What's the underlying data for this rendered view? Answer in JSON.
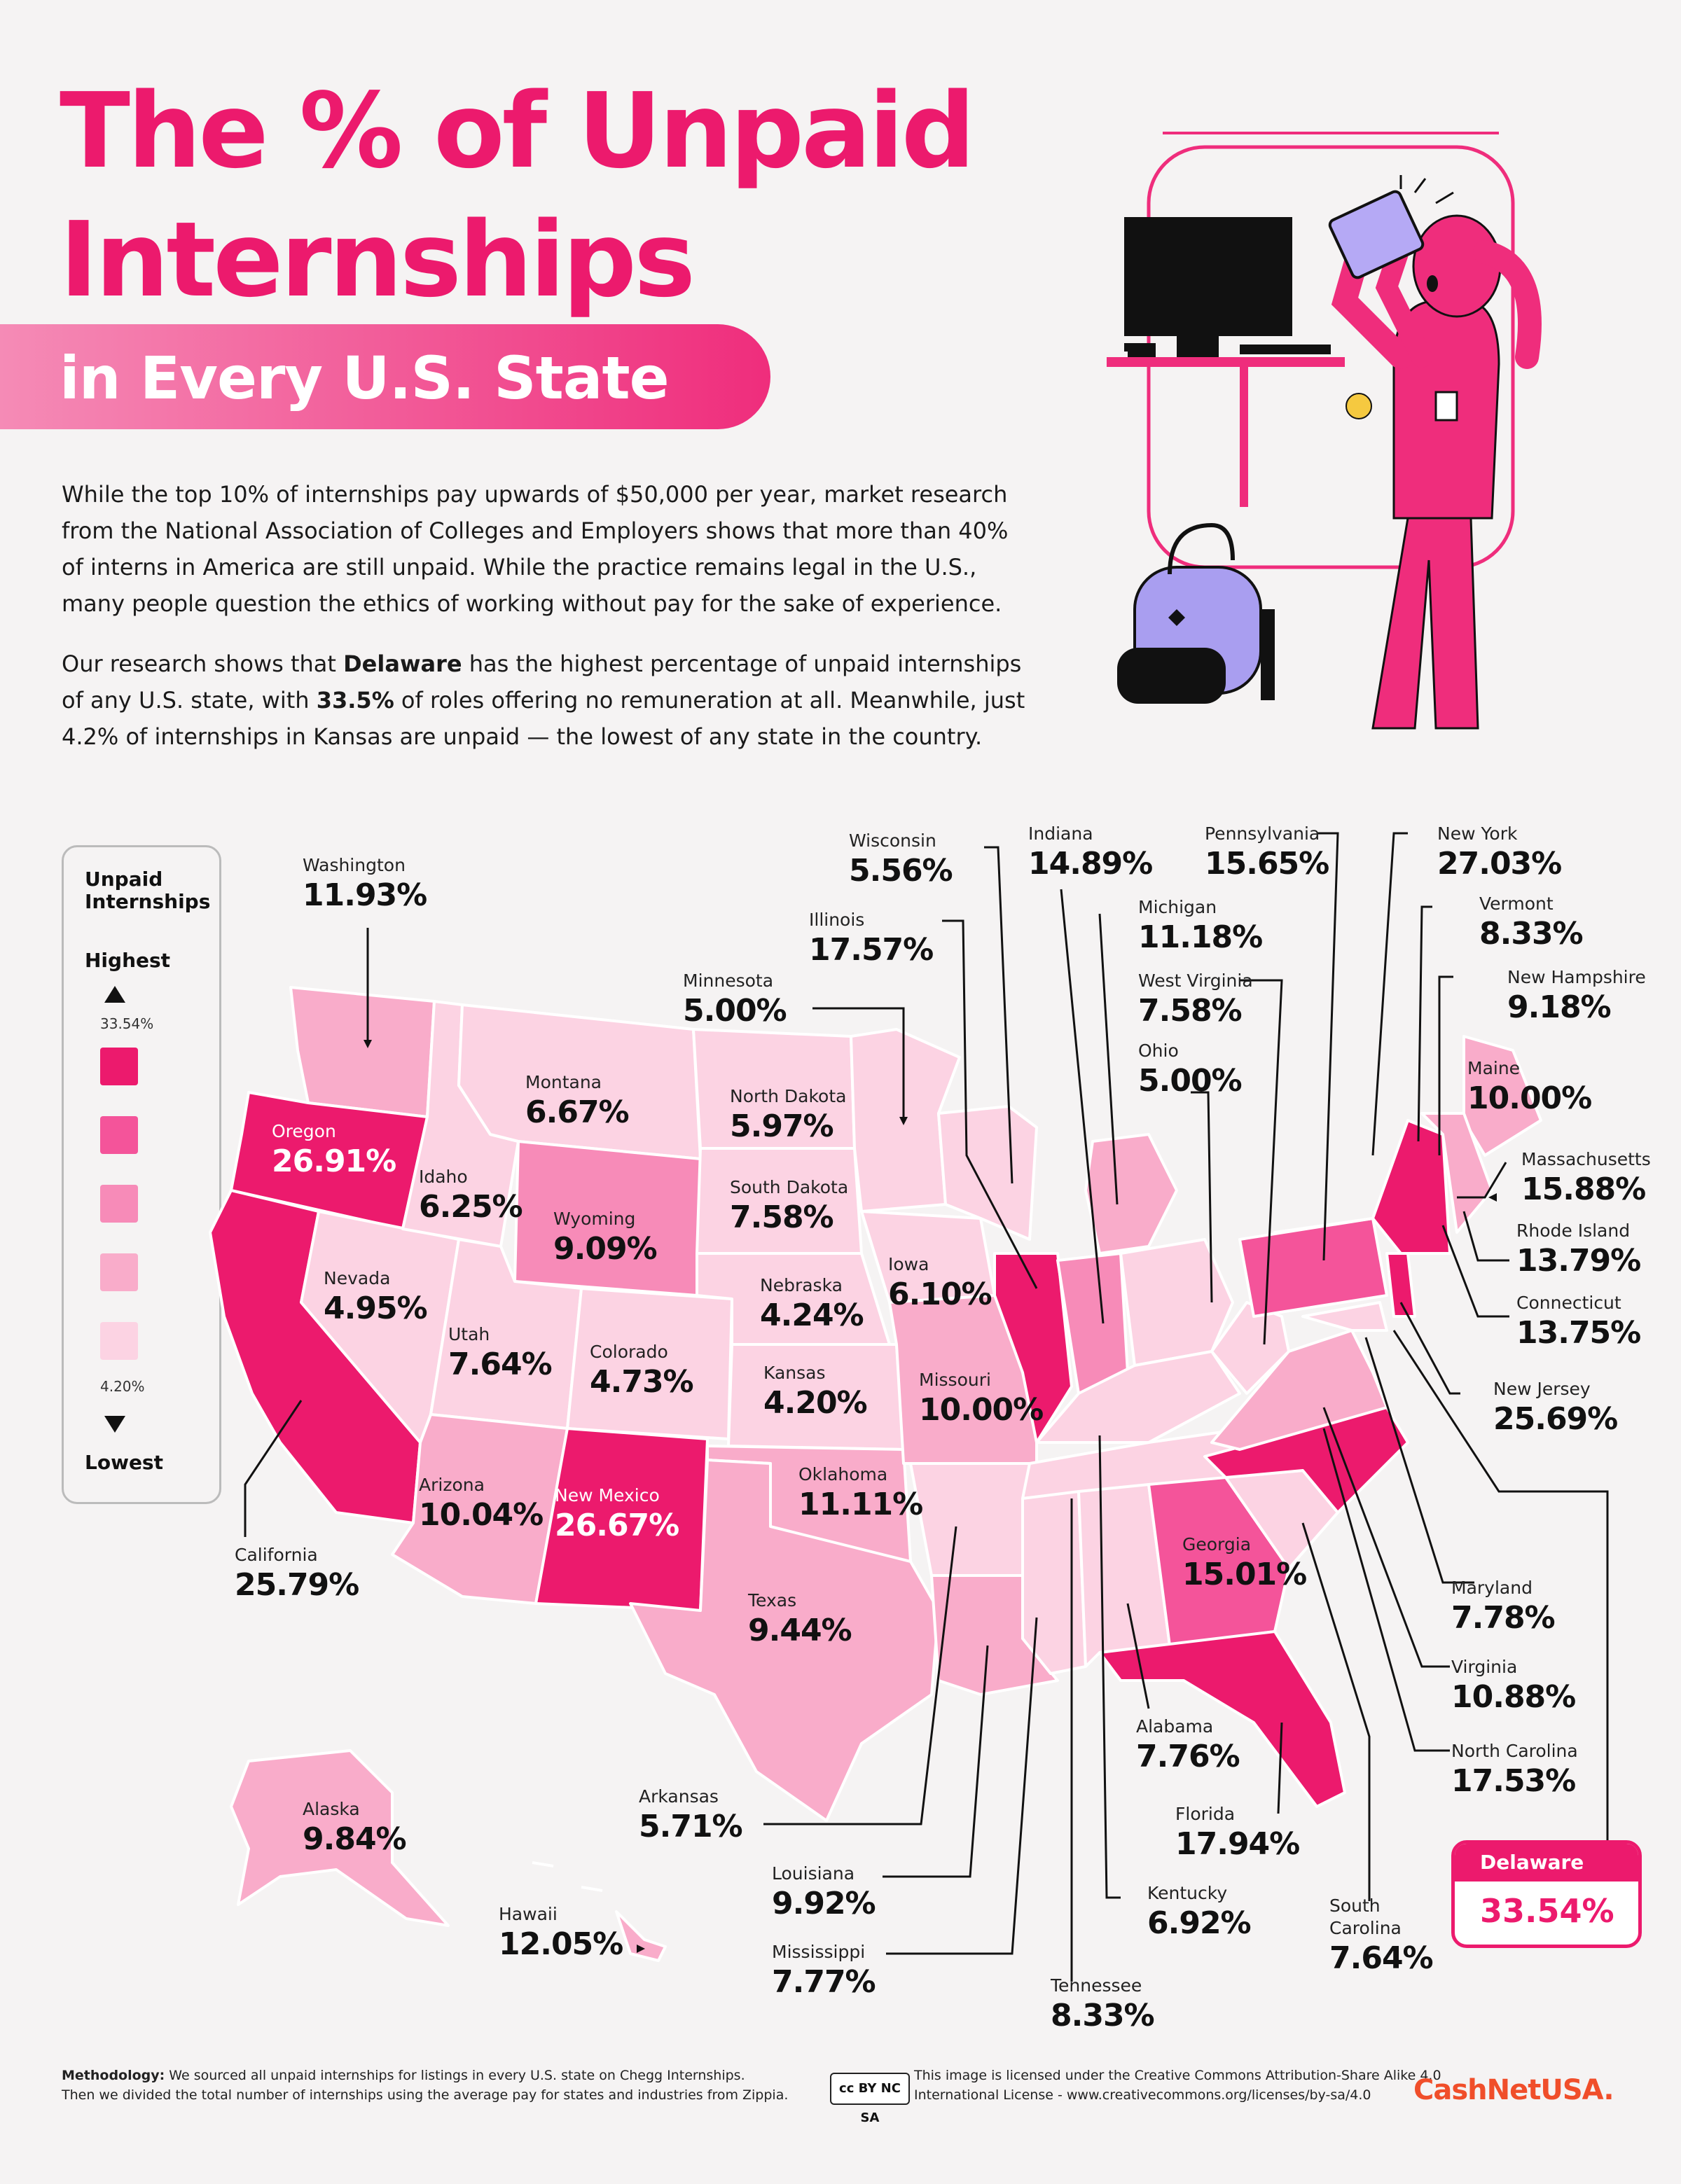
{
  "title": {
    "line1": "The % of Unpaid",
    "line2": "Internships",
    "banner": "in Every U.S. State"
  },
  "intro": {
    "p1": "While the top 10% of internships pay upwards of $50,000 per year, market research from the National Association of Colleges and Employers shows that more than 40% of interns in America are still unpaid. While the practice remains legal in the U.S., many people question the ethics of working without pay for the sake of experience.",
    "p2_pre": "Our research shows that ",
    "p2_state": "Delaware",
    "p2_mid": " has the highest percentage of unpaid internships of any U.S. state, with ",
    "p2_value": "33.5%",
    "p2_post": " of roles offering no remuneration at all. Meanwhile, just 4.2% of internships in Kansas are unpaid — the lowest of any state in the country."
  },
  "legend": {
    "title": "Unpaid Internships",
    "highest": "Highest",
    "lowest": "Lowest",
    "max": "33.54%",
    "min": "4.20%",
    "colors": [
      "#ec1a6d",
      "#f4549a",
      "#f78bb8",
      "#f9acca",
      "#fcd3e3"
    ]
  },
  "chart_data": {
    "type": "choropleth",
    "metric": "% of unpaid internships",
    "range": [
      4.2,
      33.54
    ],
    "states": [
      {
        "state": "Washington",
        "value": "11.93%"
      },
      {
        "state": "Oregon",
        "value": "26.91%"
      },
      {
        "state": "California",
        "value": "25.79%"
      },
      {
        "state": "Idaho",
        "value": "6.25%"
      },
      {
        "state": "Nevada",
        "value": "4.95%"
      },
      {
        "state": "Montana",
        "value": "6.67%"
      },
      {
        "state": "Wyoming",
        "value": "9.09%"
      },
      {
        "state": "Utah",
        "value": "7.64%"
      },
      {
        "state": "Colorado",
        "value": "4.73%"
      },
      {
        "state": "Arizona",
        "value": "10.04%"
      },
      {
        "state": "New Mexico",
        "value": "26.67%"
      },
      {
        "state": "North Dakota",
        "value": "5.97%"
      },
      {
        "state": "South Dakota",
        "value": "7.58%"
      },
      {
        "state": "Nebraska",
        "value": "4.24%"
      },
      {
        "state": "Kansas",
        "value": "4.20%"
      },
      {
        "state": "Oklahoma",
        "value": "11.11%"
      },
      {
        "state": "Texas",
        "value": "9.44%"
      },
      {
        "state": "Minnesota",
        "value": "5.00%"
      },
      {
        "state": "Iowa",
        "value": "6.10%"
      },
      {
        "state": "Missouri",
        "value": "10.00%"
      },
      {
        "state": "Arkansas",
        "value": "5.71%"
      },
      {
        "state": "Louisiana",
        "value": "9.92%"
      },
      {
        "state": "Mississippi",
        "value": "7.77%"
      },
      {
        "state": "Wisconsin",
        "value": "5.56%"
      },
      {
        "state": "Illinois",
        "value": "17.57%"
      },
      {
        "state": "Indiana",
        "value": "14.89%"
      },
      {
        "state": "Michigan",
        "value": "11.18%"
      },
      {
        "state": "Ohio",
        "value": "5.00%"
      },
      {
        "state": "Kentucky",
        "value": "6.92%"
      },
      {
        "state": "Tennessee",
        "value": "8.33%"
      },
      {
        "state": "Alabama",
        "value": "7.76%"
      },
      {
        "state": "Georgia",
        "value": "15.01%"
      },
      {
        "state": "Florida",
        "value": "17.94%"
      },
      {
        "state": "South Carolina",
        "value": "7.64%"
      },
      {
        "state": "North Carolina",
        "value": "17.53%"
      },
      {
        "state": "Virginia",
        "value": "10.88%"
      },
      {
        "state": "West Virginia",
        "value": "7.58%"
      },
      {
        "state": "Pennsylvania",
        "value": "15.65%"
      },
      {
        "state": "New York",
        "value": "27.03%"
      },
      {
        "state": "Vermont",
        "value": "8.33%"
      },
      {
        "state": "New Hampshire",
        "value": "9.18%"
      },
      {
        "state": "Maine",
        "value": "10.00%"
      },
      {
        "state": "Massachusetts",
        "value": "15.88%"
      },
      {
        "state": "Rhode Island",
        "value": "13.79%"
      },
      {
        "state": "Connecticut",
        "value": "13.75%"
      },
      {
        "state": "New Jersey",
        "value": "25.69%"
      },
      {
        "state": "Maryland",
        "value": "7.78%"
      },
      {
        "state": "Delaware",
        "value": "33.54%"
      },
      {
        "state": "Alaska",
        "value": "9.84%"
      },
      {
        "state": "Hawaii",
        "value": "12.05%"
      }
    ]
  },
  "callout": {
    "state": "Delaware",
    "value": "33.54%"
  },
  "footer": {
    "method_label": "Methodology:",
    "method_line1": " We sourced all unpaid internships for listings in every U.S. state on Chegg Internships.",
    "method_line2": "Then we divided the total number of internships using the average pay for states and industries from Zippia.",
    "license_line1": "This image is licensed under the Creative Commons Attribution-Share Alike 4.0",
    "license_line2": "International License - www.creativecommons.org/licenses/by-sa/4.0",
    "cc_badge": "cc BY NC SA",
    "logo": "CashNetUSA."
  }
}
